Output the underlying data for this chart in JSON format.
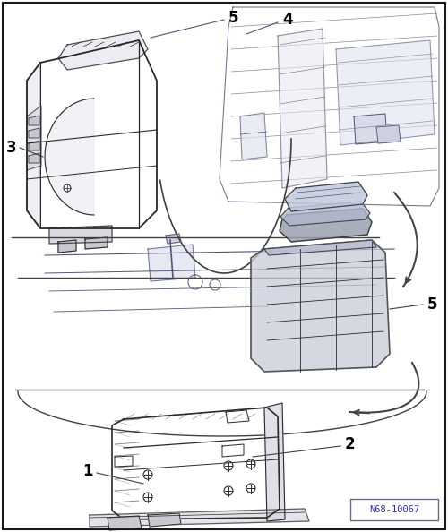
{
  "bg_color": "#ffffff",
  "border_color": "#1a1a1a",
  "line_color": "#404040",
  "label_color": "#000000",
  "ref_box_text": "N68-10067",
  "ref_box_border": "#6666aa",
  "fig_width": 5.0,
  "fig_height": 5.94,
  "dpi": 100,
  "arrow_color": "#444444",
  "sketch_color": "#2a2a2a",
  "sketch_color_light": "#555577",
  "shaded_color": "#c8ccd8",
  "shaded_dark": "#9aa0b0",
  "label_fontsize": 12,
  "label_bold": true
}
